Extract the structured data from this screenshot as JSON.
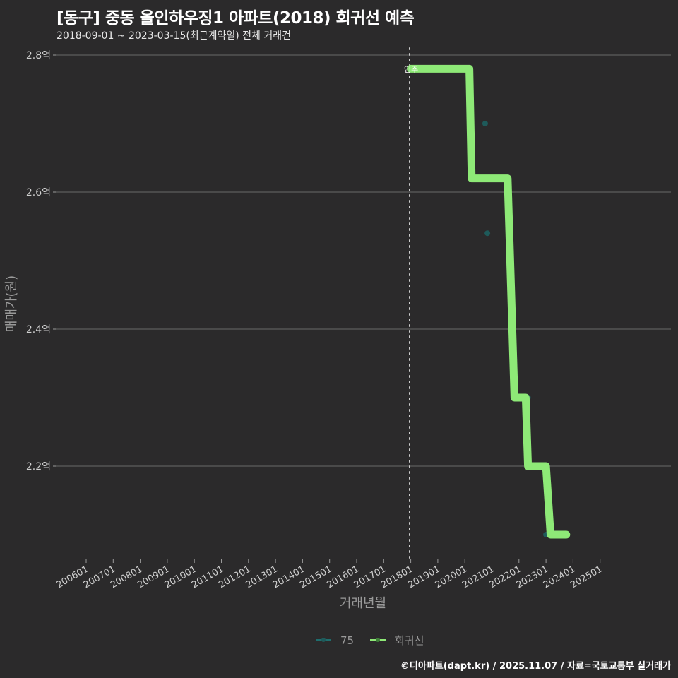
{
  "header": {
    "title": "[동구] 중동 올인하우징1 아파트(2018) 회귀선 예측",
    "subtitle": "2018-09-01 ~ 2023-03-15(최근계약일) 전체 거래건"
  },
  "footer": "©디아파트(dapt.kr) / 2025.11.07 / 자료=국토교통부 실거래가",
  "colors": {
    "background": "#2b2a2b",
    "regression": "#8ee977",
    "series75": "#1e5a5a",
    "grid": "#5e5e5e",
    "axis_text": "#d0d0d0"
  },
  "chart_data": {
    "type": "line",
    "title": "[동구] 중동 올인하우징1 아파트(2018) 회귀선 예측",
    "subtitle": "2018-09-01 ~ 2023-03-15(최근계약일) 전체 거래건",
    "xlabel": "거래년월",
    "ylabel": "매매가(원)",
    "x_ticks": [
      "200601",
      "200701",
      "200801",
      "200901",
      "201001",
      "201101",
      "201201",
      "201301",
      "201401",
      "201501",
      "201601",
      "201701",
      "201801",
      "201901",
      "202001",
      "202101",
      "202201",
      "202301",
      "202401",
      "202501"
    ],
    "y_ticks": [
      "2.2억",
      "2.4억",
      "2.6억",
      "2.8억"
    ],
    "y_tick_values": [
      2.2,
      2.4,
      2.6,
      2.8
    ],
    "ylim": [
      2.08,
      2.82
    ],
    "grid": true,
    "legend_position": "bottom",
    "vline": {
      "x": "201801",
      "style": "dotted",
      "label": "입주"
    },
    "series": [
      {
        "name": "75",
        "type": "scatter",
        "color": "#1e5a5a",
        "points": [
          {
            "x": "2018-01",
            "y": 2.78
          },
          {
            "x": "2020-10",
            "y": 2.7
          },
          {
            "x": "2020-11",
            "y": 2.54
          },
          {
            "x": "2022-05",
            "y": 2.3
          },
          {
            "x": "2023-01",
            "y": 2.1
          }
        ]
      },
      {
        "name": "회귀선",
        "type": "step",
        "color": "#8ee977",
        "points": [
          {
            "x": "2018-01",
            "y": 2.78
          },
          {
            "x": "2020-03",
            "y": 2.78
          },
          {
            "x": "2020-04",
            "y": 2.62
          },
          {
            "x": "2021-08",
            "y": 2.62
          },
          {
            "x": "2021-11",
            "y": 2.3
          },
          {
            "x": "2022-04",
            "y": 2.3
          },
          {
            "x": "2022-05",
            "y": 2.2
          },
          {
            "x": "2023-01",
            "y": 2.2
          },
          {
            "x": "2023-03",
            "y": 2.1
          },
          {
            "x": "2023-10",
            "y": 2.1
          }
        ]
      }
    ]
  },
  "legend": {
    "items": [
      {
        "label": "75",
        "color": "#1e6e6e"
      },
      {
        "label": "회귀선",
        "color": "#8ee977"
      }
    ]
  }
}
